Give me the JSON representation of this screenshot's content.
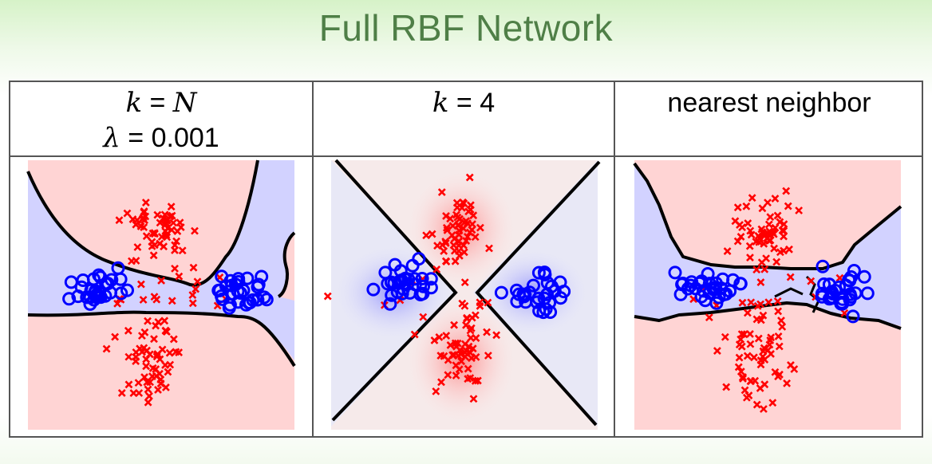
{
  "slide": {
    "title": "Full RBF Network"
  },
  "panels": [
    {
      "header": {
        "var1": "k",
        "eq1": " = ",
        "val1": "N",
        "var2": "λ",
        "eq2": " = ",
        "val2": "0.001"
      }
    },
    {
      "header": {
        "var1": "k",
        "eq1": " = ",
        "val1": "4"
      }
    },
    {
      "header": {
        "text": "nearest neighbor"
      }
    }
  ],
  "colors": {
    "red_class": "#ff0000",
    "blue_class": "#0000ff",
    "red_region": "#ffd4d4",
    "blue_region": "#d2d2ff",
    "boundary": "#000000"
  }
}
